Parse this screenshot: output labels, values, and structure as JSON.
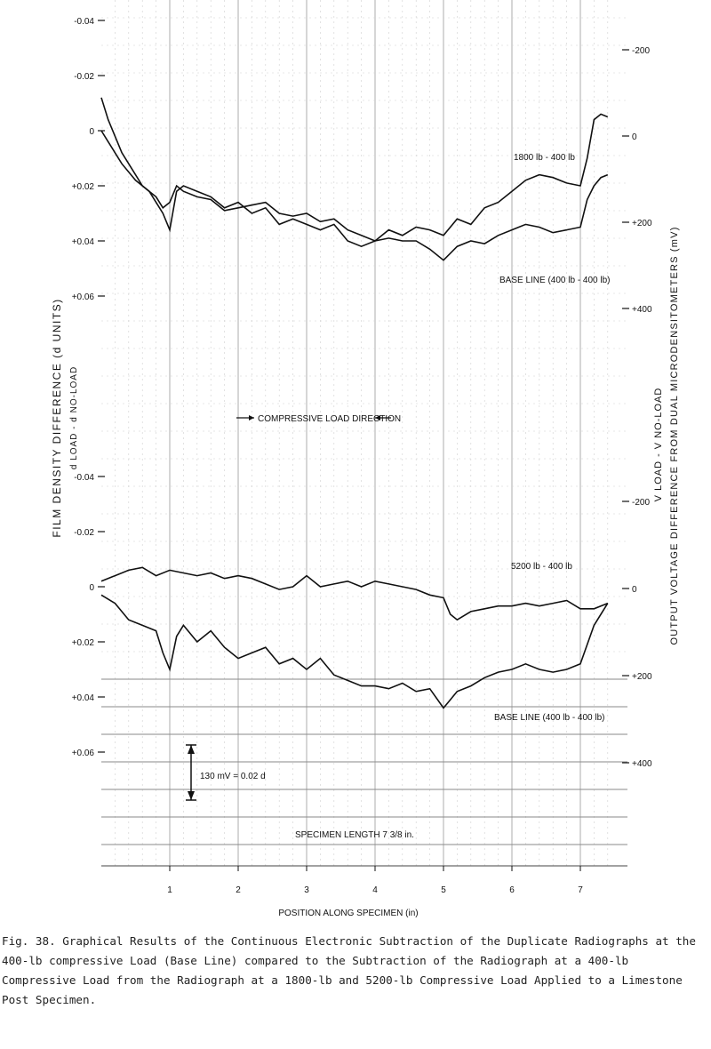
{
  "chart_data": [
    {
      "type": "line",
      "panel": "upper",
      "x_range": [
        0,
        7.4
      ],
      "left_ticks": [
        "-0.04",
        "-0.02",
        "0",
        "+0.02",
        "+0.04",
        "+0.06"
      ],
      "left_tick_values": [
        -0.04,
        -0.02,
        0,
        0.02,
        0.04,
        0.06
      ],
      "right_ticks": [
        "-200",
        "0",
        "+200",
        "+400"
      ],
      "right_tick_values": [
        -200,
        0,
        200,
        400
      ],
      "series": [
        {
          "name": "1800 lb - 400 lb",
          "x": [
            0,
            0.1,
            0.2,
            0.3,
            0.4,
            0.5,
            0.6,
            0.7,
            0.8,
            0.9,
            1.0,
            1.1,
            1.2,
            1.4,
            1.6,
            1.8,
            2.0,
            2.2,
            2.4,
            2.6,
            2.8,
            3.0,
            3.2,
            3.4,
            3.6,
            3.8,
            4.0,
            4.2,
            4.4,
            4.6,
            4.8,
            5.0,
            5.2,
            5.4,
            5.6,
            5.8,
            6.0,
            6.2,
            6.4,
            6.6,
            6.8,
            7.0,
            7.1,
            7.2,
            7.3,
            7.4
          ],
          "y": [
            -0.012,
            -0.004,
            0.002,
            0.008,
            0.012,
            0.016,
            0.02,
            0.022,
            0.024,
            0.028,
            0.026,
            0.02,
            0.022,
            0.024,
            0.025,
            0.029,
            0.028,
            0.027,
            0.026,
            0.03,
            0.031,
            0.03,
            0.033,
            0.032,
            0.036,
            0.038,
            0.04,
            0.036,
            0.038,
            0.035,
            0.036,
            0.038,
            0.032,
            0.034,
            0.028,
            0.026,
            0.022,
            0.018,
            0.016,
            0.017,
            0.019,
            0.02,
            0.01,
            -0.004,
            -0.006,
            -0.005
          ]
        },
        {
          "name": "BASE LINE (400 lb - 400 lb)",
          "x": [
            0,
            0.1,
            0.2,
            0.3,
            0.4,
            0.5,
            0.6,
            0.7,
            0.8,
            0.9,
            1.0,
            1.1,
            1.2,
            1.4,
            1.6,
            1.8,
            2.0,
            2.2,
            2.4,
            2.6,
            2.8,
            3.0,
            3.2,
            3.4,
            3.6,
            3.8,
            4.0,
            4.2,
            4.4,
            4.6,
            4.8,
            5.0,
            5.2,
            5.4,
            5.6,
            5.8,
            6.0,
            6.2,
            6.4,
            6.6,
            6.8,
            7.0,
            7.1,
            7.2,
            7.3,
            7.4
          ],
          "y": [
            0.0,
            0.004,
            0.008,
            0.012,
            0.015,
            0.018,
            0.02,
            0.022,
            0.026,
            0.03,
            0.036,
            0.022,
            0.02,
            0.022,
            0.024,
            0.028,
            0.026,
            0.03,
            0.028,
            0.034,
            0.032,
            0.034,
            0.036,
            0.034,
            0.04,
            0.042,
            0.04,
            0.039,
            0.04,
            0.04,
            0.043,
            0.047,
            0.042,
            0.04,
            0.041,
            0.038,
            0.036,
            0.034,
            0.035,
            0.037,
            0.036,
            0.035,
            0.025,
            0.02,
            0.017,
            0.016
          ]
        }
      ],
      "labels": {
        "a": "1800 lb - 400 lb",
        "b": "BASE LINE (400 lb - 400 lb)"
      }
    },
    {
      "type": "line",
      "panel": "lower",
      "x_range": [
        0,
        7.4
      ],
      "left_ticks": [
        "-0.04",
        "-0.02",
        "0",
        "+0.02",
        "+0.04",
        "+0.06"
      ],
      "left_tick_values": [
        -0.04,
        -0.02,
        0,
        0.02,
        0.04,
        0.06
      ],
      "right_ticks": [
        "-200",
        "0",
        "+200",
        "+400"
      ],
      "right_tick_values": [
        -200,
        0,
        200,
        400
      ],
      "series": [
        {
          "name": "5200 lb - 400 lb",
          "x": [
            0,
            0.2,
            0.4,
            0.6,
            0.8,
            1.0,
            1.2,
            1.4,
            1.6,
            1.8,
            2.0,
            2.2,
            2.4,
            2.6,
            2.8,
            3.0,
            3.2,
            3.4,
            3.6,
            3.8,
            4.0,
            4.2,
            4.4,
            4.6,
            4.8,
            5.0,
            5.1,
            5.2,
            5.4,
            5.6,
            5.8,
            6.0,
            6.2,
            6.4,
            6.6,
            6.8,
            7.0,
            7.2,
            7.4
          ],
          "y": [
            -0.002,
            -0.004,
            -0.006,
            -0.007,
            -0.004,
            -0.006,
            -0.005,
            -0.004,
            -0.005,
            -0.003,
            -0.004,
            -0.003,
            -0.001,
            0.001,
            0.0,
            -0.004,
            0.0,
            -0.001,
            -0.002,
            0.0,
            -0.002,
            -0.001,
            0.0,
            0.001,
            0.003,
            0.004,
            0.01,
            0.012,
            0.009,
            0.008,
            0.007,
            0.007,
            0.006,
            0.007,
            0.006,
            0.005,
            0.008,
            0.008,
            0.006
          ]
        },
        {
          "name": "BASE LINE (400 lb - 400 lb)",
          "x": [
            0,
            0.2,
            0.4,
            0.6,
            0.8,
            0.9,
            1.0,
            1.1,
            1.2,
            1.4,
            1.6,
            1.8,
            2.0,
            2.2,
            2.4,
            2.6,
            2.8,
            3.0,
            3.2,
            3.4,
            3.6,
            3.8,
            4.0,
            4.2,
            4.4,
            4.6,
            4.8,
            5.0,
            5.2,
            5.4,
            5.6,
            5.8,
            6.0,
            6.2,
            6.4,
            6.6,
            6.8,
            7.0,
            7.2,
            7.4
          ],
          "y": [
            0.003,
            0.006,
            0.012,
            0.014,
            0.016,
            0.024,
            0.03,
            0.018,
            0.014,
            0.02,
            0.016,
            0.022,
            0.026,
            0.024,
            0.022,
            0.028,
            0.026,
            0.03,
            0.026,
            0.032,
            0.034,
            0.036,
            0.036,
            0.037,
            0.035,
            0.038,
            0.037,
            0.044,
            0.038,
            0.036,
            0.033,
            0.031,
            0.03,
            0.028,
            0.03,
            0.031,
            0.03,
            0.028,
            0.014,
            0.006
          ]
        }
      ],
      "labels": {
        "a": "5200 lb - 400 lb",
        "b": "BASE LINE (400 lb - 400 lb)"
      }
    }
  ],
  "texts": {
    "left_axis_title": "FILM DENSITY DIFFERENCE (d UNITS)",
    "left_axis_sub": "d LOAD - d NO-LOAD",
    "right_axis_title": "OUTPUT VOLTAGE DIFFERENCE FROM DUAL MICRODENSITOMETERS (mV)",
    "right_axis_sub": "V LOAD - V NO-LOAD",
    "load_direction": "COMPRESSIVE LOAD DIRECTION",
    "scale_note": "130 mV = 0.02 d",
    "specimen_length": "SPECIMEN LENGTH 7 3/8 in.",
    "x_axis_label": "POSITION ALONG SPECIMEN (in)",
    "x_ticks": [
      "1",
      "2",
      "3",
      "4",
      "5",
      "6",
      "7"
    ],
    "x_tick_values": [
      1,
      2,
      3,
      4,
      5,
      6,
      7
    ]
  },
  "caption": "Fig. 38.  Graphical Results of the Continuous Electronic Subtraction of the Duplicate Radiographs at the 400-lb compressive Load (Base Line) compared to the Subtraction of the Radiograph at a 400-lb Compressive Load from the Radiograph at a 1800-lb and 5200-lb Compressive Load Applied to a Limestone Post Specimen."
}
